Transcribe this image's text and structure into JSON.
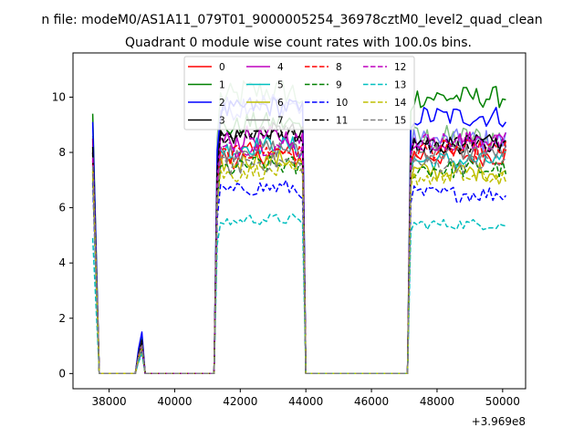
{
  "chart_data": {
    "type": "line",
    "suptitle": "n file: modeM0/AS1A11_079T01_9000005254_36978cztM0_level2_quad_clean",
    "title": "Quadrant 0 module wise count rates with 100.0s bins.",
    "xlabel": "",
    "ylabel": "",
    "x_offset_label": "+3.969e8",
    "xlim": [
      36900,
      50700
    ],
    "ylim": [
      -0.55,
      11.6
    ],
    "xticks": [
      38000,
      40000,
      42000,
      44000,
      46000,
      48000,
      50000
    ],
    "xtick_labels": [
      "38000",
      "40000",
      "42000",
      "44000",
      "46000",
      "48000",
      "50000"
    ],
    "yticks": [
      0,
      2,
      4,
      6,
      8,
      10
    ],
    "ytick_labels": [
      "0",
      "2",
      "4",
      "6",
      "8",
      "10"
    ],
    "grid": false,
    "legend_position": "top-center",
    "legend_columns": 4,
    "segments": {
      "bin": 100,
      "start": 37500,
      "end": 50100,
      "orbit1": [
        41300,
        43900
      ],
      "orbit2": [
        47200,
        50100
      ],
      "spike": 39000
    },
    "series": [
      {
        "name": "0",
        "color": "#ff0000",
        "dash": "solid",
        "start": 8.5,
        "spike": 1.0,
        "level1": 7.8,
        "level2": 7.9,
        "amp": 0.4
      },
      {
        "name": "1",
        "color": "#008000",
        "dash": "solid",
        "start": 9.4,
        "spike": 1.3,
        "level1": 8.9,
        "level2": 10.0,
        "amp": 0.4
      },
      {
        "name": "2",
        "color": "#0000ff",
        "dash": "solid",
        "start": 9.1,
        "spike": 1.5,
        "level1": 9.5,
        "level2": 9.3,
        "amp": 0.4
      },
      {
        "name": "3",
        "color": "#000000",
        "dash": "solid",
        "start": 8.2,
        "spike": 1.2,
        "level1": 8.6,
        "level2": 8.3,
        "amp": 0.35
      },
      {
        "name": "4",
        "color": "#bf00bf",
        "dash": "solid",
        "start": 8.0,
        "spike": 1.1,
        "level1": 8.4,
        "level2": 8.4,
        "amp": 0.4
      },
      {
        "name": "5",
        "color": "#00bfbf",
        "dash": "solid",
        "start": 7.6,
        "spike": 1.0,
        "level1": 8.1,
        "level2": 7.7,
        "amp": 0.35
      },
      {
        "name": "6",
        "color": "#bfbf00",
        "dash": "solid",
        "start": 7.2,
        "spike": 0.9,
        "level1": 7.6,
        "level2": 7.3,
        "amp": 0.35
      },
      {
        "name": "7",
        "color": "#808080",
        "dash": "solid",
        "start": 7.9,
        "spike": 1.1,
        "level1": 8.0,
        "level2": 8.0,
        "amp": 0.35
      },
      {
        "name": "8",
        "color": "#ff0000",
        "dash": "dashed",
        "start": 7.7,
        "spike": 1.0,
        "level1": 7.9,
        "level2": 8.1,
        "amp": 0.35
      },
      {
        "name": "9",
        "color": "#008000",
        "dash": "dashed",
        "start": 7.3,
        "spike": 0.9,
        "level1": 7.4,
        "level2": 7.4,
        "amp": 0.35
      },
      {
        "name": "10",
        "color": "#0000ff",
        "dash": "dashed",
        "start": 6.9,
        "spike": 0.8,
        "level1": 6.6,
        "level2": 6.5,
        "amp": 0.3
      },
      {
        "name": "11",
        "color": "#000000",
        "dash": "dashed",
        "start": 8.0,
        "spike": 1.1,
        "level1": 8.6,
        "level2": 8.3,
        "amp": 0.3
      },
      {
        "name": "12",
        "color": "#bf00bf",
        "dash": "dashed",
        "start": 7.8,
        "spike": 1.0,
        "level1": 8.1,
        "level2": 8.4,
        "amp": 0.35
      },
      {
        "name": "13",
        "color": "#00bfbf",
        "dash": "dashed",
        "start": 4.9,
        "spike": 0.7,
        "level1": 5.5,
        "level2": 5.4,
        "amp": 0.2
      },
      {
        "name": "14",
        "color": "#bfbf00",
        "dash": "dashed",
        "start": 7.4,
        "spike": 0.9,
        "level1": 7.2,
        "level2": 7.1,
        "amp": 0.3
      },
      {
        "name": "15",
        "color": "#808080",
        "dash": "dashed",
        "start": 7.5,
        "spike": 1.0,
        "level1": 7.5,
        "level2": 7.6,
        "amp": 0.35
      },
      {
        "name": "",
        "color": "#7fbf7f",
        "dash": "solid",
        "start": 8.6,
        "spike": 1.2,
        "level1": 10.0,
        "level2": 8.5,
        "amp": 0.5
      },
      {
        "name": "",
        "color": "#7f7fff",
        "dash": "solid",
        "start": 8.4,
        "spike": 1.2,
        "level1": 9.6,
        "level2": 8.4,
        "amp": 0.45
      }
    ]
  }
}
